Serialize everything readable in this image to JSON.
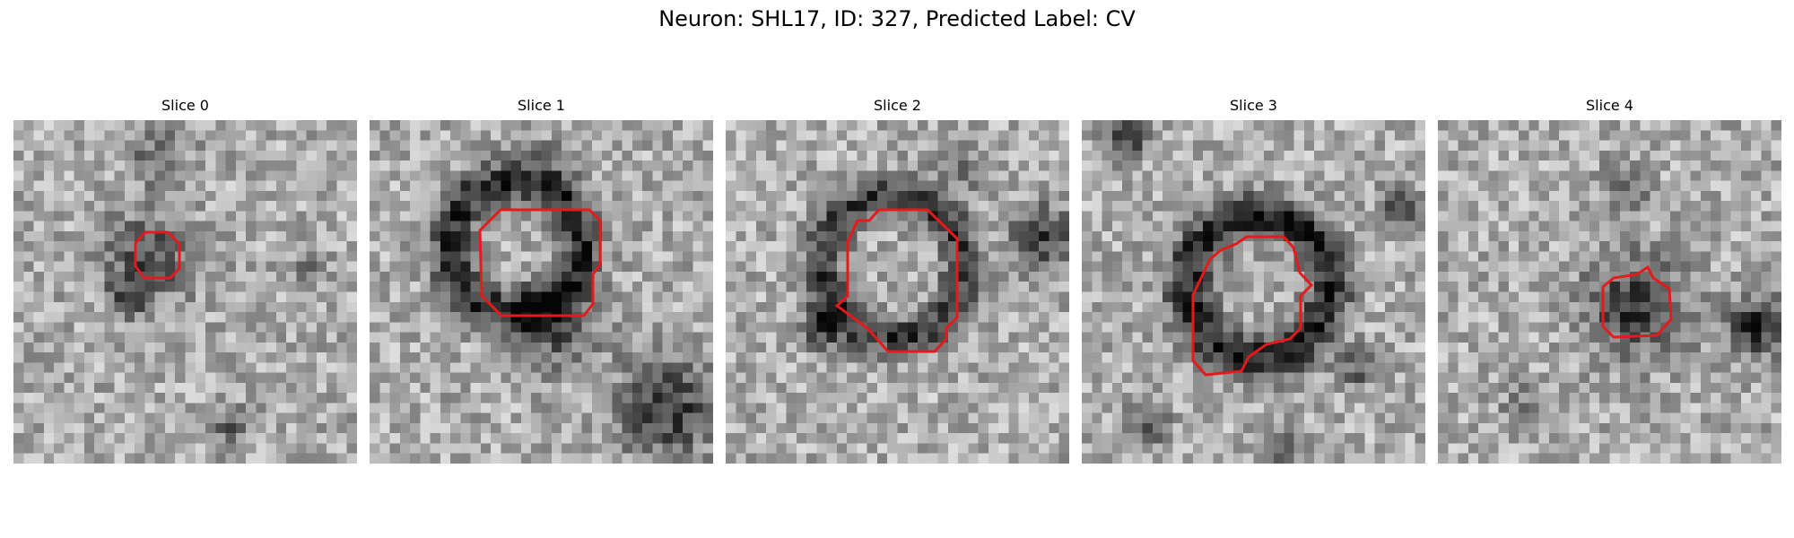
{
  "figure": {
    "title": "Neuron: SHL17, ID: 327, Predicted Label: CV"
  },
  "panels": [
    {
      "title": "Slice 0",
      "type": "image"
    },
    {
      "title": "Slice 1",
      "type": "image"
    },
    {
      "title": "Slice 2",
      "type": "image"
    },
    {
      "title": "Slice 3",
      "type": "image"
    },
    {
      "title": "Slice 4",
      "type": "image"
    }
  ],
  "colors": {
    "background": "#ffffff",
    "contour": "#e41a1c",
    "image_colormap": "grayscale"
  }
}
